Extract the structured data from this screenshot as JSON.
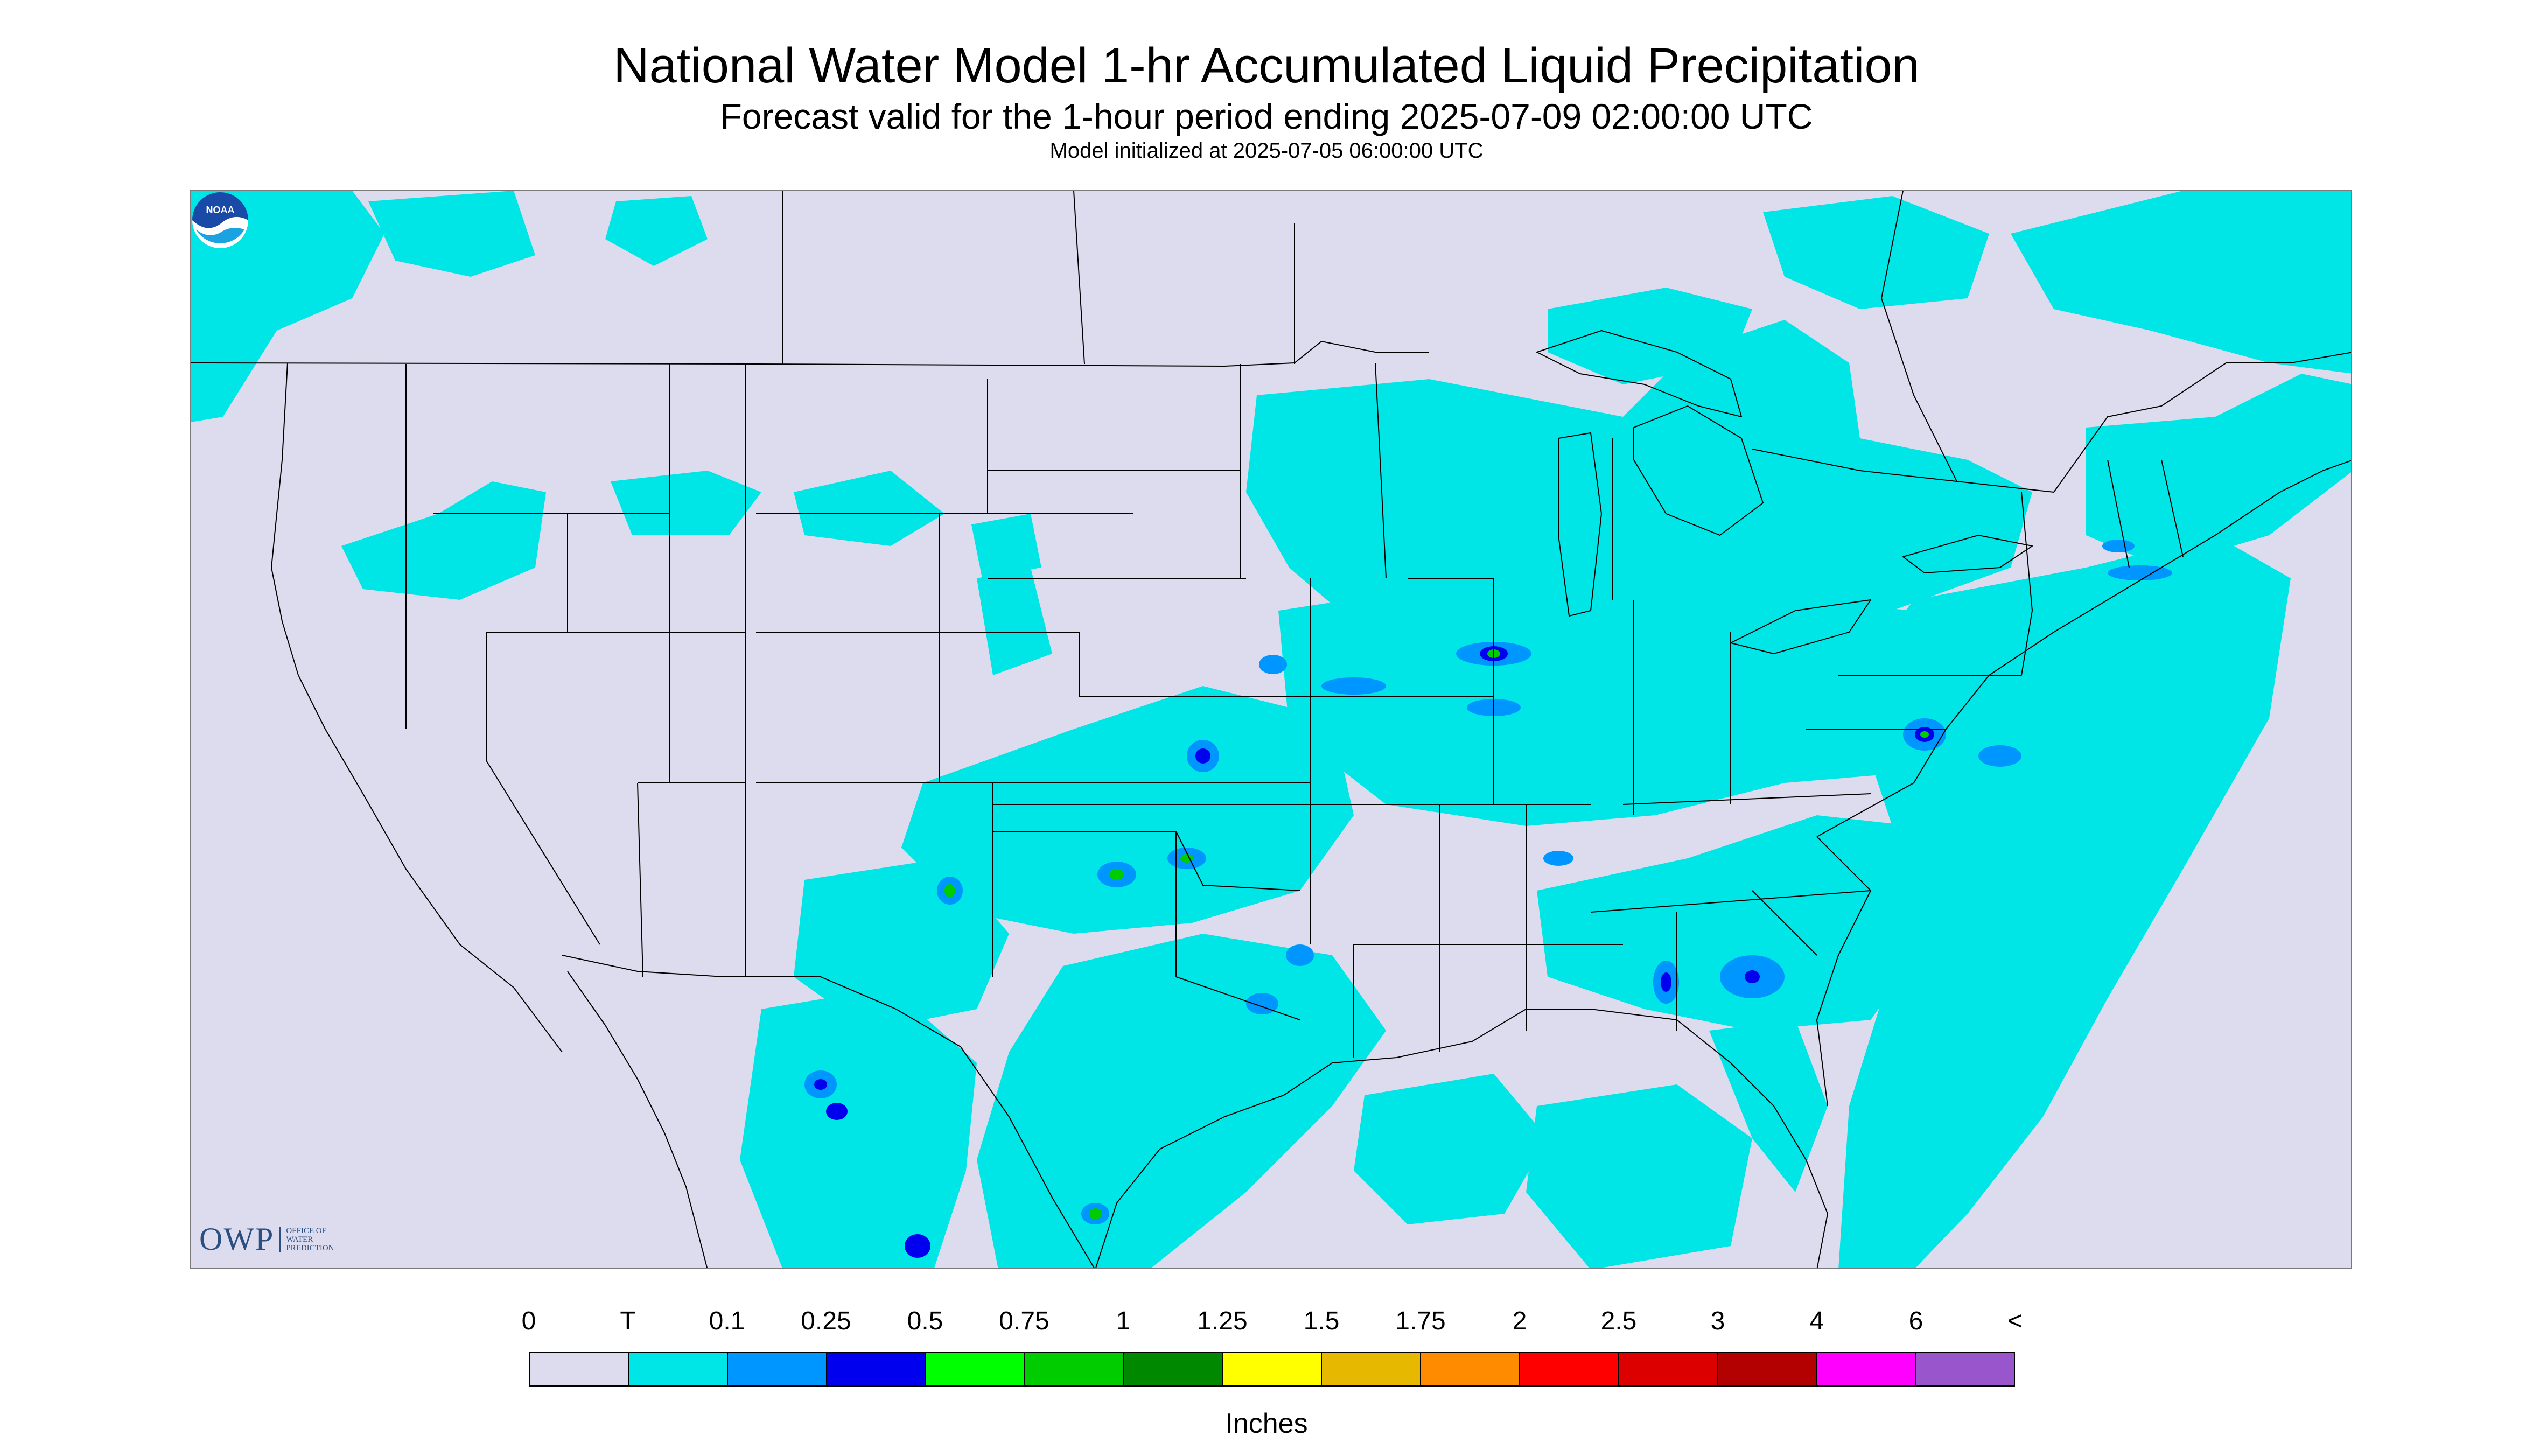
{
  "header": {
    "title": "National Water Model 1-hr Accumulated Liquid Precipitation",
    "subtitle": "Forecast valid for the 1-hour period ending 2025-07-09 02:00:00 UTC",
    "init": "Model initialized at 2025-07-05 06:00:00 UTC"
  },
  "map": {
    "background_color": "#dcdcee",
    "outside_color": "#dcdcee",
    "boundary_color": "#000000",
    "rain_icon": "precipitation-area"
  },
  "logos": {
    "owp": {
      "mark": "OWP",
      "line1": "OFFICE OF",
      "line2": "WATER",
      "line3": "PREDICTION"
    },
    "noaa": {
      "icon": "noaa-logo-icon",
      "text": "NOAA"
    }
  },
  "legend": {
    "ticks": [
      "0",
      "T",
      "0.1",
      "0.25",
      "0.5",
      "0.75",
      "1",
      "1.25",
      "1.5",
      "1.75",
      "2",
      "2.5",
      "3",
      "4",
      "6",
      "<"
    ],
    "colors": [
      "#dcdcee",
      "#00e5e5",
      "#0096ff",
      "#0000ee",
      "#00ff00",
      "#00cc00",
      "#008800",
      "#ffff00",
      "#e6b800",
      "#ff8c00",
      "#ff0000",
      "#dd0000",
      "#b30000",
      "#ff00ff",
      "#9955cc"
    ],
    "units": "Inches"
  }
}
